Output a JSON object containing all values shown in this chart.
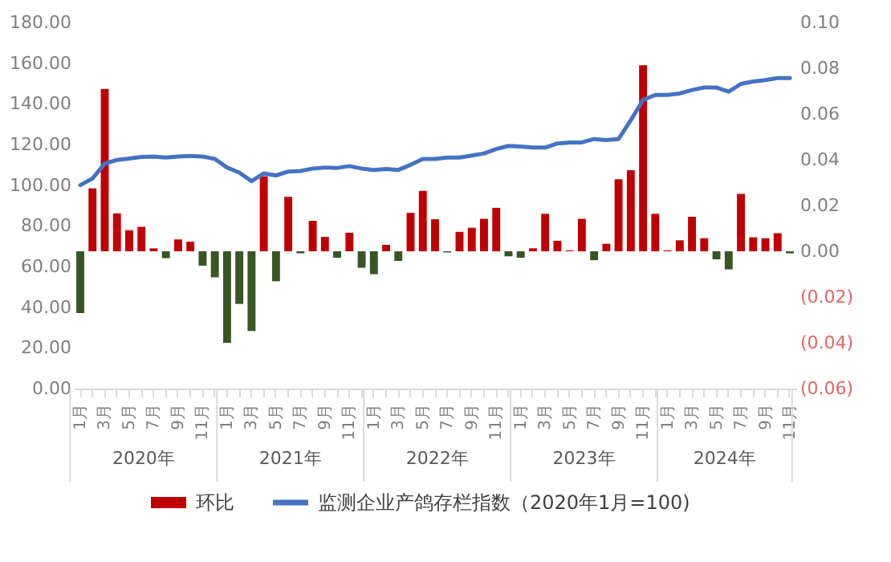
{
  "chart_data": {
    "type": "bar",
    "legend": "bottom",
    "grid": false,
    "categories": [
      "1月",
      null,
      "3月",
      null,
      "5月",
      null,
      "7月",
      null,
      "9月",
      null,
      "11月",
      null,
      "1月",
      null,
      "3月",
      null,
      "5月",
      null,
      "7月",
      null,
      "9月",
      null,
      "11月",
      null,
      "1月",
      null,
      "3月",
      null,
      "5月",
      null,
      "7月",
      null,
      "9月",
      null,
      "11月",
      null,
      "1月",
      null,
      "3月",
      null,
      "5月",
      null,
      "7月",
      null,
      "9月",
      null,
      "11月",
      null,
      "1月",
      null,
      "3月",
      null,
      "5月",
      null,
      "7月",
      null,
      "9月",
      null,
      "11月"
    ],
    "annotations": [
      "2020年",
      "2021年",
      "2022年",
      "2023年",
      "2024年"
    ],
    "series": [
      {
        "name": "环比",
        "axis": "y2",
        "color": "#c00000",
        "values": [
          -0.027,
          0.0275,
          0.071,
          0.0166,
          0.0092,
          0.0107,
          0.0013,
          -0.003,
          0.0052,
          0.0042,
          -0.0063,
          -0.0114,
          -0.04,
          -0.023,
          -0.0348,
          0.0328,
          -0.0131,
          0.0238,
          -0.0009,
          0.0133,
          0.0063,
          -0.0028,
          0.0081,
          -0.0072,
          -0.01,
          0.0028,
          -0.0042,
          0.0168,
          0.0264,
          0.014,
          -0.0005,
          0.0085,
          0.0103,
          0.0142,
          0.019,
          -0.0022,
          -0.0028,
          0.0013,
          0.0164,
          0.0046,
          0.0004,
          0.0142,
          -0.0039,
          0.0033,
          0.0315,
          0.0354,
          0.0813,
          0.0164,
          0.0004,
          0.0048,
          0.0151,
          0.0057,
          -0.0035,
          -0.0079,
          0.0251,
          0.0061,
          0.0057,
          0.0079,
          -0.0009
        ],
        "colors": [
          "#375623",
          "#c00000",
          "#c00000",
          "#c00000",
          "#c00000",
          "#c00000",
          "#c00000",
          "#375623",
          "#c00000",
          "#c00000",
          "#375623",
          "#375623",
          "#375623",
          "#375623",
          "#375623",
          "#c00000",
          "#375623",
          "#c00000",
          "#375623",
          "#c00000",
          "#c00000",
          "#375623",
          "#c00000",
          "#375623",
          "#375623",
          "#c00000",
          "#375623",
          "#c00000",
          "#c00000",
          "#c00000",
          "#375623",
          "#c00000",
          "#c00000",
          "#c00000",
          "#c00000",
          "#375623",
          "#375623",
          "#c00000",
          "#c00000",
          "#c00000",
          "#c00000",
          "#c00000",
          "#375623",
          "#c00000",
          "#c00000",
          "#c00000",
          "#c00000",
          "#c00000",
          "#c00000",
          "#c00000",
          "#c00000",
          "#c00000",
          "#375623",
          "#375623",
          "#c00000",
          "#c00000",
          "#c00000",
          "#c00000",
          "#375623"
        ]
      },
      {
        "name": "监测企业产鸽存栏指数（2020年1月=100)",
        "type": "line",
        "color": "#4472c4",
        "values": [
          100,
          103.3,
          110.7,
          112.4,
          113.1,
          113.9,
          114.1,
          113.6,
          114.1,
          114.4,
          114.1,
          112.9,
          108.7,
          106.2,
          102,
          105.8,
          104.8,
          106.7,
          107,
          108.2,
          108.7,
          108.5,
          109.4,
          108.2,
          107.5,
          108,
          107.5,
          110,
          112.9,
          112.9,
          113.6,
          113.6,
          114.6,
          115.6,
          117.8,
          119.3,
          119,
          118.5,
          118.5,
          120.5,
          121,
          121,
          122.7,
          122.2,
          122.7,
          132,
          141.9,
          144.4,
          144.4,
          145.1,
          146.8,
          148,
          148,
          146,
          149.8,
          151,
          151.7,
          152.7,
          152.7
        ]
      }
    ],
    "ylim": [
      0,
      180
    ],
    "yticks": [
      {
        "value": 0,
        "label": "0.00"
      },
      {
        "value": 20,
        "label": "20.00"
      },
      {
        "value": 40,
        "label": "40.00"
      },
      {
        "value": 60,
        "label": "60.00"
      },
      {
        "value": 80,
        "label": "80.00"
      },
      {
        "value": 100,
        "label": "100.00"
      },
      {
        "value": 120,
        "label": "120.00"
      },
      {
        "value": 140,
        "label": "140.00"
      },
      {
        "value": 160,
        "label": "160.00"
      },
      {
        "value": 180,
        "label": "180.00"
      }
    ],
    "y2lim": [
      -0.06,
      0.1
    ],
    "y2ticks": [
      {
        "value": -0.06,
        "label": "(0.06)"
      },
      {
        "value": -0.04,
        "label": "(0.04)"
      },
      {
        "value": -0.02,
        "label": "(0.02)"
      },
      {
        "value": 0,
        "label": "0.00"
      },
      {
        "value": 0.02,
        "label": "0.02"
      },
      {
        "value": 0.04,
        "label": "0.04"
      },
      {
        "value": 0.06,
        "label": "0.06"
      },
      {
        "value": 0.08,
        "label": "0.08"
      },
      {
        "value": 0.1,
        "label": "0.10"
      }
    ]
  }
}
